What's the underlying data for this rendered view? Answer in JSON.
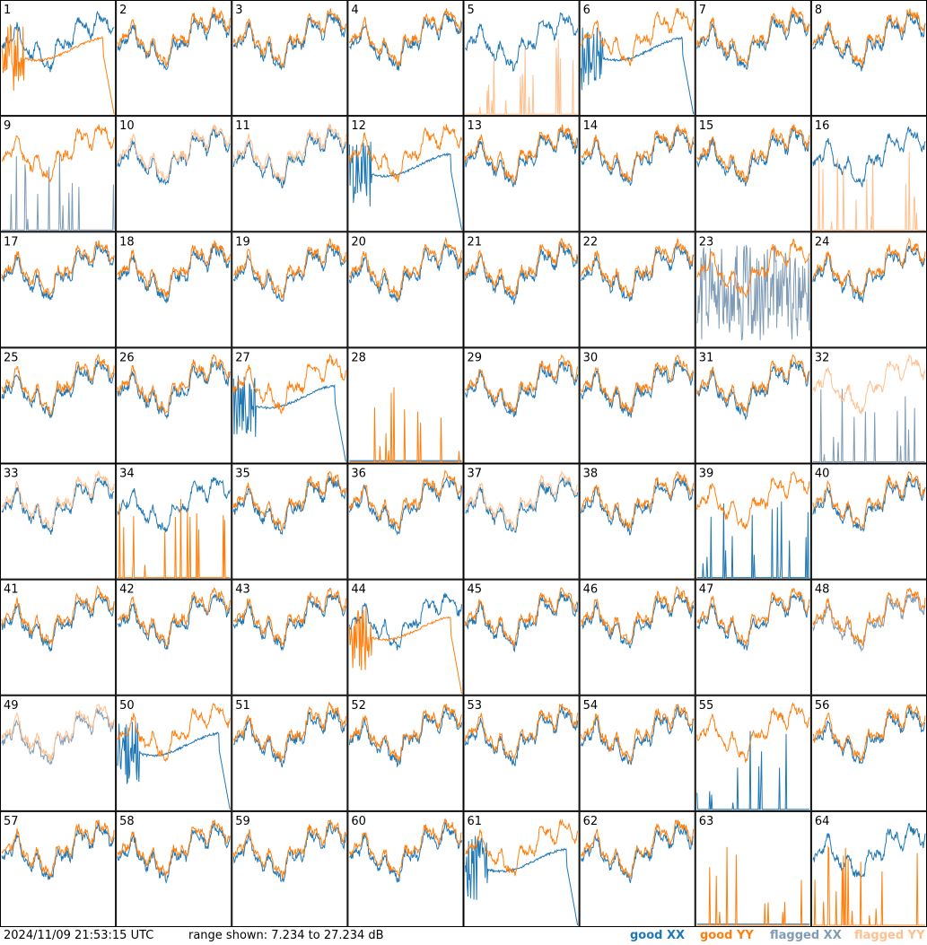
{
  "header": {
    "timestamp": "2024/11/09 21:53:15 UTC",
    "range_text": "range shown: 7.234 to 27.234 dB"
  },
  "legend": [
    {
      "label": "good XX",
      "color": "#1f77b4"
    },
    {
      "label": "good YY",
      "color": "#ff7f0e"
    },
    {
      "label": "flagged XX",
      "color": "#7f9bb5"
    },
    {
      "label": "flagged YY",
      "color": "#ffc08f"
    }
  ],
  "chart_data": {
    "type": "line",
    "ylim": [
      7.234,
      27.234
    ],
    "units": "dB",
    "grid": false,
    "legend_placement": "bottom-right",
    "panels": [
      {
        "label": "1",
        "xx": "good",
        "yy": "good",
        "xx_shape": "normal",
        "yy_shape": "dropout"
      },
      {
        "label": "2",
        "xx": "good",
        "yy": "good",
        "xx_shape": "normal",
        "yy_shape": "normal"
      },
      {
        "label": "3",
        "xx": "good",
        "yy": "good",
        "xx_shape": "normal",
        "yy_shape": "normal"
      },
      {
        "label": "4",
        "xx": "good",
        "yy": "good",
        "xx_shape": "normal",
        "yy_shape": "normal"
      },
      {
        "label": "5",
        "xx": "good",
        "yy": "flagged",
        "xx_shape": "normal",
        "yy_shape": "spikes"
      },
      {
        "label": "6",
        "xx": "good",
        "yy": "good",
        "xx_shape": "dropout",
        "yy_shape": "normal"
      },
      {
        "label": "7",
        "xx": "good",
        "yy": "good",
        "xx_shape": "normal",
        "yy_shape": "normal"
      },
      {
        "label": "8",
        "xx": "good",
        "yy": "good",
        "xx_shape": "normal",
        "yy_shape": "normal"
      },
      {
        "label": "9",
        "xx": "flagged",
        "yy": "good",
        "xx_shape": "spikes",
        "yy_shape": "normal"
      },
      {
        "label": "10",
        "xx": "good",
        "yy": "flagged",
        "xx_shape": "normal",
        "yy_shape": "normal"
      },
      {
        "label": "11",
        "xx": "good",
        "yy": "flagged",
        "xx_shape": "normal",
        "yy_shape": "normal"
      },
      {
        "label": "12",
        "xx": "good",
        "yy": "good",
        "xx_shape": "dropout",
        "yy_shape": "normal"
      },
      {
        "label": "13",
        "xx": "good",
        "yy": "good",
        "xx_shape": "normal",
        "yy_shape": "normal"
      },
      {
        "label": "14",
        "xx": "good",
        "yy": "good",
        "xx_shape": "normal",
        "yy_shape": "normal"
      },
      {
        "label": "15",
        "xx": "good",
        "yy": "good",
        "xx_shape": "normal",
        "yy_shape": "normal"
      },
      {
        "label": "16",
        "xx": "good",
        "yy": "flagged",
        "xx_shape": "normal",
        "yy_shape": "spikes"
      },
      {
        "label": "17",
        "xx": "good",
        "yy": "good",
        "xx_shape": "normal",
        "yy_shape": "normal"
      },
      {
        "label": "18",
        "xx": "good",
        "yy": "good",
        "xx_shape": "normal",
        "yy_shape": "normal"
      },
      {
        "label": "19",
        "xx": "good",
        "yy": "good",
        "xx_shape": "normal",
        "yy_shape": "normal"
      },
      {
        "label": "20",
        "xx": "good",
        "yy": "good",
        "xx_shape": "normal",
        "yy_shape": "normal"
      },
      {
        "label": "21",
        "xx": "good",
        "yy": "good",
        "xx_shape": "normal",
        "yy_shape": "normal"
      },
      {
        "label": "22",
        "xx": "good",
        "yy": "good",
        "xx_shape": "normal",
        "yy_shape": "normal"
      },
      {
        "label": "23",
        "xx": "flagged",
        "yy": "good",
        "xx_shape": "noisy",
        "yy_shape": "normal"
      },
      {
        "label": "24",
        "xx": "good",
        "yy": "good",
        "xx_shape": "normal",
        "yy_shape": "normal"
      },
      {
        "label": "25",
        "xx": "good",
        "yy": "good",
        "xx_shape": "normal",
        "yy_shape": "normal"
      },
      {
        "label": "26",
        "xx": "good",
        "yy": "good",
        "xx_shape": "normal",
        "yy_shape": "normal"
      },
      {
        "label": "27",
        "xx": "good",
        "yy": "good",
        "xx_shape": "dropout",
        "yy_shape": "normal"
      },
      {
        "label": "28",
        "xx": "good",
        "yy": "good",
        "xx_shape": "flat",
        "yy_shape": "spikes"
      },
      {
        "label": "29",
        "xx": "good",
        "yy": "good",
        "xx_shape": "normal",
        "yy_shape": "normal"
      },
      {
        "label": "30",
        "xx": "good",
        "yy": "good",
        "xx_shape": "normal",
        "yy_shape": "normal"
      },
      {
        "label": "31",
        "xx": "good",
        "yy": "good",
        "xx_shape": "normal",
        "yy_shape": "normal"
      },
      {
        "label": "32",
        "xx": "flagged",
        "yy": "flagged",
        "xx_shape": "spikes",
        "yy_shape": "normal"
      },
      {
        "label": "33",
        "xx": "good",
        "yy": "flagged",
        "xx_shape": "normal",
        "yy_shape": "normal"
      },
      {
        "label": "34",
        "xx": "good",
        "yy": "good",
        "xx_shape": "normal",
        "yy_shape": "spikes"
      },
      {
        "label": "35",
        "xx": "good",
        "yy": "good",
        "xx_shape": "normal",
        "yy_shape": "normal"
      },
      {
        "label": "36",
        "xx": "good",
        "yy": "good",
        "xx_shape": "normal",
        "yy_shape": "normal"
      },
      {
        "label": "37",
        "xx": "good",
        "yy": "flagged",
        "xx_shape": "normal",
        "yy_shape": "normal"
      },
      {
        "label": "38",
        "xx": "good",
        "yy": "good",
        "xx_shape": "normal",
        "yy_shape": "normal"
      },
      {
        "label": "39",
        "xx": "good",
        "yy": "good",
        "xx_shape": "spikes",
        "yy_shape": "normal"
      },
      {
        "label": "40",
        "xx": "good",
        "yy": "good",
        "xx_shape": "normal",
        "yy_shape": "normal"
      },
      {
        "label": "41",
        "xx": "good",
        "yy": "good",
        "xx_shape": "normal",
        "yy_shape": "normal"
      },
      {
        "label": "42",
        "xx": "good",
        "yy": "good",
        "xx_shape": "normal",
        "yy_shape": "normal"
      },
      {
        "label": "43",
        "xx": "good",
        "yy": "good",
        "xx_shape": "normal",
        "yy_shape": "normal"
      },
      {
        "label": "44",
        "xx": "good",
        "yy": "good",
        "xx_shape": "normal",
        "yy_shape": "dropout"
      },
      {
        "label": "45",
        "xx": "good",
        "yy": "good",
        "xx_shape": "normal",
        "yy_shape": "normal"
      },
      {
        "label": "46",
        "xx": "good",
        "yy": "good",
        "xx_shape": "normal",
        "yy_shape": "normal"
      },
      {
        "label": "47",
        "xx": "good",
        "yy": "good",
        "xx_shape": "normal",
        "yy_shape": "normal"
      },
      {
        "label": "48",
        "xx": "flagged",
        "yy": "good",
        "xx_shape": "normal",
        "yy_shape": "normal"
      },
      {
        "label": "49",
        "xx": "flagged",
        "yy": "flagged",
        "xx_shape": "normal",
        "yy_shape": "normal"
      },
      {
        "label": "50",
        "xx": "good",
        "yy": "good",
        "xx_shape": "dropout",
        "yy_shape": "normal"
      },
      {
        "label": "51",
        "xx": "good",
        "yy": "good",
        "xx_shape": "normal",
        "yy_shape": "normal"
      },
      {
        "label": "52",
        "xx": "good",
        "yy": "good",
        "xx_shape": "normal",
        "yy_shape": "normal"
      },
      {
        "label": "53",
        "xx": "good",
        "yy": "good",
        "xx_shape": "normal",
        "yy_shape": "normal"
      },
      {
        "label": "54",
        "xx": "good",
        "yy": "good",
        "xx_shape": "normal",
        "yy_shape": "normal"
      },
      {
        "label": "55",
        "xx": "good",
        "yy": "good",
        "xx_shape": "spikes",
        "yy_shape": "normal"
      },
      {
        "label": "56",
        "xx": "good",
        "yy": "good",
        "xx_shape": "normal",
        "yy_shape": "normal"
      },
      {
        "label": "57",
        "xx": "good",
        "yy": "good",
        "xx_shape": "normal",
        "yy_shape": "normal"
      },
      {
        "label": "58",
        "xx": "good",
        "yy": "good",
        "xx_shape": "normal",
        "yy_shape": "normal"
      },
      {
        "label": "59",
        "xx": "good",
        "yy": "good",
        "xx_shape": "normal",
        "yy_shape": "normal"
      },
      {
        "label": "60",
        "xx": "good",
        "yy": "good",
        "xx_shape": "normal",
        "yy_shape": "normal"
      },
      {
        "label": "61",
        "xx": "good",
        "yy": "good",
        "xx_shape": "dropout",
        "yy_shape": "normal"
      },
      {
        "label": "62",
        "xx": "good",
        "yy": "good",
        "xx_shape": "normal",
        "yy_shape": "normal"
      },
      {
        "label": "63",
        "xx": "good",
        "yy": "good",
        "xx_shape": "flat",
        "yy_shape": "spikes"
      },
      {
        "label": "64",
        "xx": "good",
        "yy": "good",
        "xx_shape": "normal",
        "yy_shape": "spikes"
      }
    ]
  }
}
